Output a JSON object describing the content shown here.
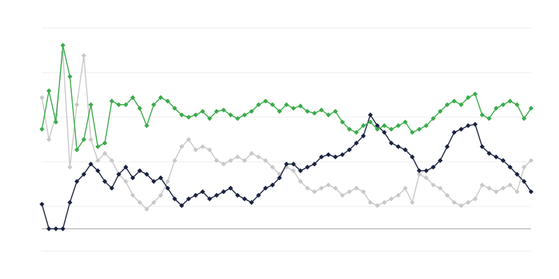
{
  "chart_data": {
    "type": "line",
    "ylim": [
      -5,
      45
    ],
    "yticks": [
      -5,
      5,
      15,
      25,
      35,
      45
    ],
    "grid": true,
    "series": [
      {
        "color": "#c8c8c8",
        "values": [
          29.4,
          20,
          25.5,
          39.5,
          13.8,
          27.8,
          38.8,
          20,
          15.3,
          16.9,
          15.3,
          12.2,
          10.6,
          7.5,
          5.9,
          4.4,
          5.9,
          7.5,
          10.6,
          15.3,
          18.4,
          20,
          17.7,
          18.4,
          17.7,
          15.3,
          14.5,
          15.3,
          16.1,
          15.3,
          16.9,
          16.1,
          15.3,
          13.8,
          12.2,
          13.8,
          13,
          10.6,
          9.1,
          8.3,
          9.1,
          9.8,
          9.1,
          7.5,
          8.3,
          9.1,
          8.3,
          5.9,
          5.2,
          5.9,
          6.7,
          7.5,
          9.1,
          5.9,
          12.2,
          11.4,
          9.8,
          9.1,
          7.5,
          5.9,
          5.2,
          5.9,
          6.7,
          9.8,
          9.1,
          8.3,
          9.1,
          9.8,
          8.3,
          13.8,
          15.3
        ]
      },
      {
        "color": "#1a2240",
        "values": [
          5.5,
          0,
          0,
          0,
          5.9,
          10.6,
          12.2,
          14.5,
          13,
          10.6,
          9.1,
          12.2,
          13.8,
          11.4,
          13,
          12.2,
          10.6,
          11.4,
          9.1,
          6.7,
          5.2,
          6.7,
          7.5,
          8.3,
          6.7,
          7.5,
          8.3,
          9.1,
          7.5,
          6.7,
          5.9,
          7.5,
          9.1,
          9.8,
          11.4,
          14.5,
          14.5,
          13,
          13.8,
          14.5,
          16.1,
          16.6,
          16.1,
          16.6,
          17.7,
          19.2,
          20.8,
          25.5,
          23.1,
          21.6,
          19.2,
          18.4,
          17.7,
          16.1,
          13,
          13,
          13.8,
          15.3,
          18.4,
          21.6,
          22.3,
          23.1,
          23.4,
          18.4,
          16.9,
          16.1,
          15.3,
          13.8,
          12.2,
          10.6,
          8.3
        ]
      },
      {
        "color": "#3aab4a",
        "values": [
          22.3,
          30.9,
          23.9,
          41.1,
          34.1,
          17.7,
          20,
          27.8,
          18.4,
          19.2,
          28.6,
          27.8,
          27.8,
          29.4,
          27,
          23.1,
          27.8,
          29.4,
          28.6,
          27,
          25.5,
          25,
          25.5,
          26.3,
          24.7,
          26.3,
          26.6,
          25.5,
          24.7,
          25.5,
          26.3,
          27.8,
          28.6,
          27.8,
          26.3,
          27.8,
          27,
          27.5,
          26.3,
          25.9,
          26.6,
          25.5,
          26.3,
          23.9,
          22.3,
          21.6,
          23.1,
          23.9,
          22.3,
          23.1,
          22.3,
          23.1,
          23.9,
          21.6,
          22.3,
          23.1,
          24.7,
          26.3,
          27.8,
          28.6,
          27.8,
          29.4,
          30.2,
          25.5,
          24.7,
          27,
          27.8,
          28.6,
          27.8,
          24.7,
          27
        ]
      }
    ]
  }
}
